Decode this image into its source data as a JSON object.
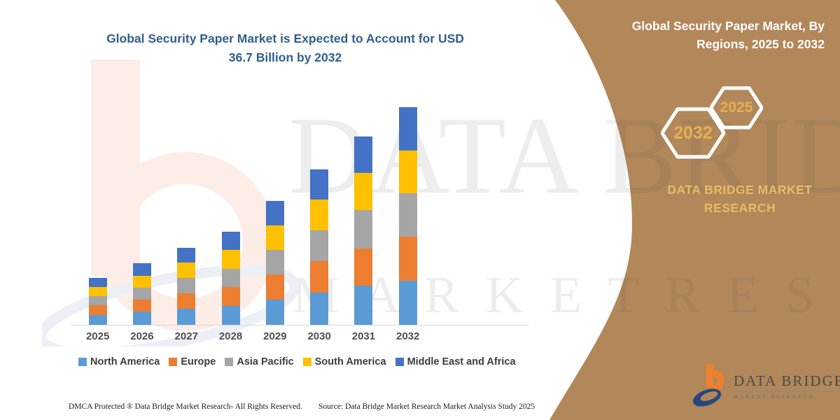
{
  "header": {
    "title_line1": "Global Security Paper Market is Expected to Account for USD",
    "title_line2": "36.7 Billion by 2032",
    "title_color": "#31608f"
  },
  "right_panel": {
    "bg_color": "#b2875a",
    "title_line1": "Global Security Paper Market, By",
    "title_line2": "Regions, 2025 to 2032",
    "hex_large_label": "2032",
    "hex_small_label": "2025",
    "hex_text_color": "#e3b14f",
    "brand_line1": "DATA BRIDGE MARKET",
    "brand_line2": "RESEARCH",
    "brand_color": "#e6bc66"
  },
  "watermark": {
    "line1": "DATA BRIDGE",
    "line2": "M A R K E T   R E S E A R C H"
  },
  "logo": {
    "wordmark": "DATA BRIDGE",
    "subtext": "MARKET RESEARCH"
  },
  "footer": {
    "dmca": "DMCA Protected ® Data Bridge Market Research-  All Rights Reserved.",
    "source": "Source: Data Bridge Market Research  Market Analysis Study 2025"
  },
  "chart_data": {
    "type": "bar",
    "stacked": true,
    "title": "Global Security Paper Market is Expected to Account for USD 36.7 Billion by 2032",
    "unit": "USD Billion",
    "xlabel": "",
    "ylabel": "",
    "ylim": [
      0,
      40
    ],
    "grid": false,
    "legend_position": "bottom",
    "categories": [
      "2025",
      "2026",
      "2027",
      "2028",
      "2029",
      "2030",
      "2031",
      "2032"
    ],
    "series": [
      {
        "name": "North America",
        "color": "#5B9BD5",
        "values": [
          1.6,
          2.2,
          2.7,
          3.2,
          4.3,
          5.4,
          6.6,
          7.4
        ]
      },
      {
        "name": "Europe",
        "color": "#ED7D31",
        "values": [
          1.7,
          2.1,
          2.6,
          3.2,
          4.2,
          5.3,
          6.3,
          7.5
        ]
      },
      {
        "name": "Asia Pacific",
        "color": "#A5A5A5",
        "values": [
          1.5,
          2.0,
          2.6,
          3.1,
          4.1,
          5.2,
          6.4,
          7.3
        ]
      },
      {
        "name": "South America",
        "color": "#FFC000",
        "values": [
          1.6,
          2.0,
          2.6,
          3.1,
          4.2,
          5.2,
          6.3,
          7.2
        ]
      },
      {
        "name": "Middle East and Africa",
        "color": "#4472C4",
        "values": [
          1.5,
          2.1,
          2.5,
          3.1,
          4.1,
          5.1,
          6.1,
          7.3
        ]
      }
    ],
    "totals": [
      7.9,
      10.4,
      13.0,
      15.7,
      20.9,
      26.2,
      31.7,
      36.7
    ]
  }
}
